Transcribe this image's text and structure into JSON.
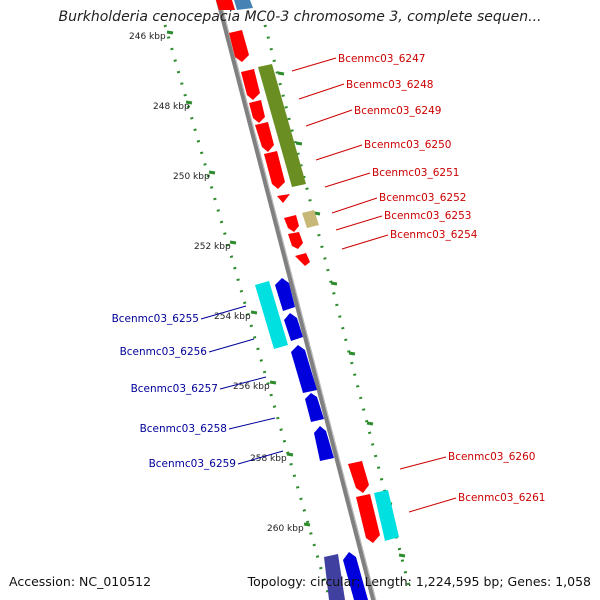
{
  "title": "Burkholderia cenocepacia MC0-3 chromosome 3, complete sequen...",
  "accession": "Accession: NC_010512",
  "topology": "Topology: circular; Length: 1,224,595 bp; Genes: 1,058",
  "colors": {
    "backbone": "#808080",
    "tick_dots": "#2e8b2e",
    "forward_label": "#cc0000",
    "reverse_label": "#000099",
    "red_gene": "#ff0000",
    "olive_gene": "#6b8e23",
    "khaki_gene": "#c8b878",
    "cyan_gene": "#00e0e0",
    "blue_gene": "#0000dd",
    "slate_gene": "#4040a0",
    "steel_gene": "#4682b4"
  },
  "ticks": [
    "246 kbp",
    "248 kbp",
    "250 kbp",
    "252 kbp",
    "254 kbp",
    "256 kbp",
    "258 kbp",
    "260 kbp"
  ],
  "forward_genes": [
    "Bcenmc03_6247",
    "Bcenmc03_6248",
    "Bcenmc03_6249",
    "Bcenmc03_6250",
    "Bcenmc03_6251",
    "Bcenmc03_6252",
    "Bcenmc03_6253",
    "Bcenmc03_6254",
    "Bcenmc03_6260",
    "Bcenmc03_6261"
  ],
  "reverse_genes": [
    "Bcenmc03_6255",
    "Bcenmc03_6256",
    "Bcenmc03_6257",
    "Bcenmc03_6258",
    "Bcenmc03_6259"
  ]
}
